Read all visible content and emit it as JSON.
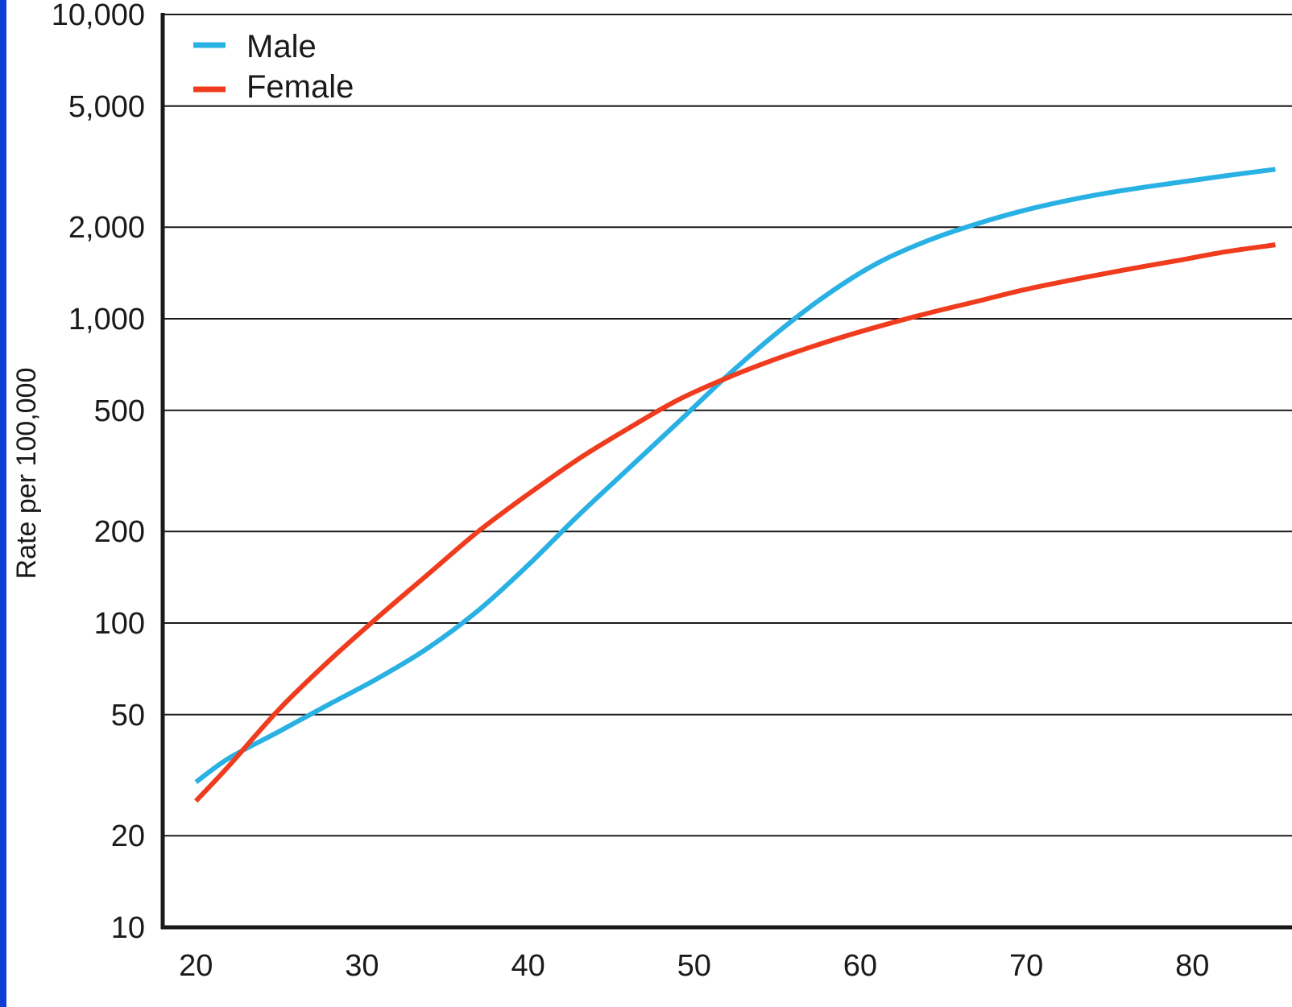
{
  "chart_data": {
    "type": "line",
    "title": "",
    "xlabel": "",
    "ylabel": "Rate per 100,000",
    "y_scale": "log",
    "ylim": [
      10,
      10000
    ],
    "xlim": [
      18,
      86
    ],
    "x_ticks": [
      20,
      30,
      40,
      50,
      60,
      70,
      80
    ],
    "x_tick_labels": [
      "20",
      "30",
      "40",
      "50",
      "60",
      "70",
      "80"
    ],
    "y_ticks": [
      10,
      20,
      50,
      100,
      200,
      500,
      1000,
      2000,
      5000,
      10000
    ],
    "y_tick_labels": [
      "10",
      "20",
      "50",
      "100",
      "200",
      "500",
      "1,000",
      "2,000",
      "5,000",
      "10,000"
    ],
    "grid": "horizontal",
    "legend_position": "top-left",
    "series": [
      {
        "name": "Male",
        "color": "#29b1e3",
        "x": [
          20,
          22,
          25,
          28,
          31,
          34,
          37,
          40,
          43,
          46,
          49,
          52,
          55,
          58,
          61,
          64,
          67,
          70,
          73,
          76,
          79,
          82,
          85
        ],
        "y": [
          30,
          36,
          44,
          54,
          66,
          83,
          110,
          155,
          225,
          320,
          455,
          650,
          900,
          1200,
          1520,
          1800,
          2050,
          2280,
          2480,
          2650,
          2800,
          2950,
          3100
        ]
      },
      {
        "name": "Female",
        "color": "#f03c1e",
        "x": [
          20,
          22,
          25,
          28,
          31,
          34,
          37,
          40,
          43,
          46,
          49,
          52,
          55,
          58,
          61,
          64,
          67,
          70,
          73,
          76,
          79,
          82,
          85
        ],
        "y": [
          26,
          34,
          52,
          75,
          105,
          145,
          200,
          265,
          345,
          435,
          540,
          640,
          740,
          840,
          940,
          1040,
          1140,
          1250,
          1350,
          1450,
          1550,
          1660,
          1750
        ]
      }
    ]
  }
}
